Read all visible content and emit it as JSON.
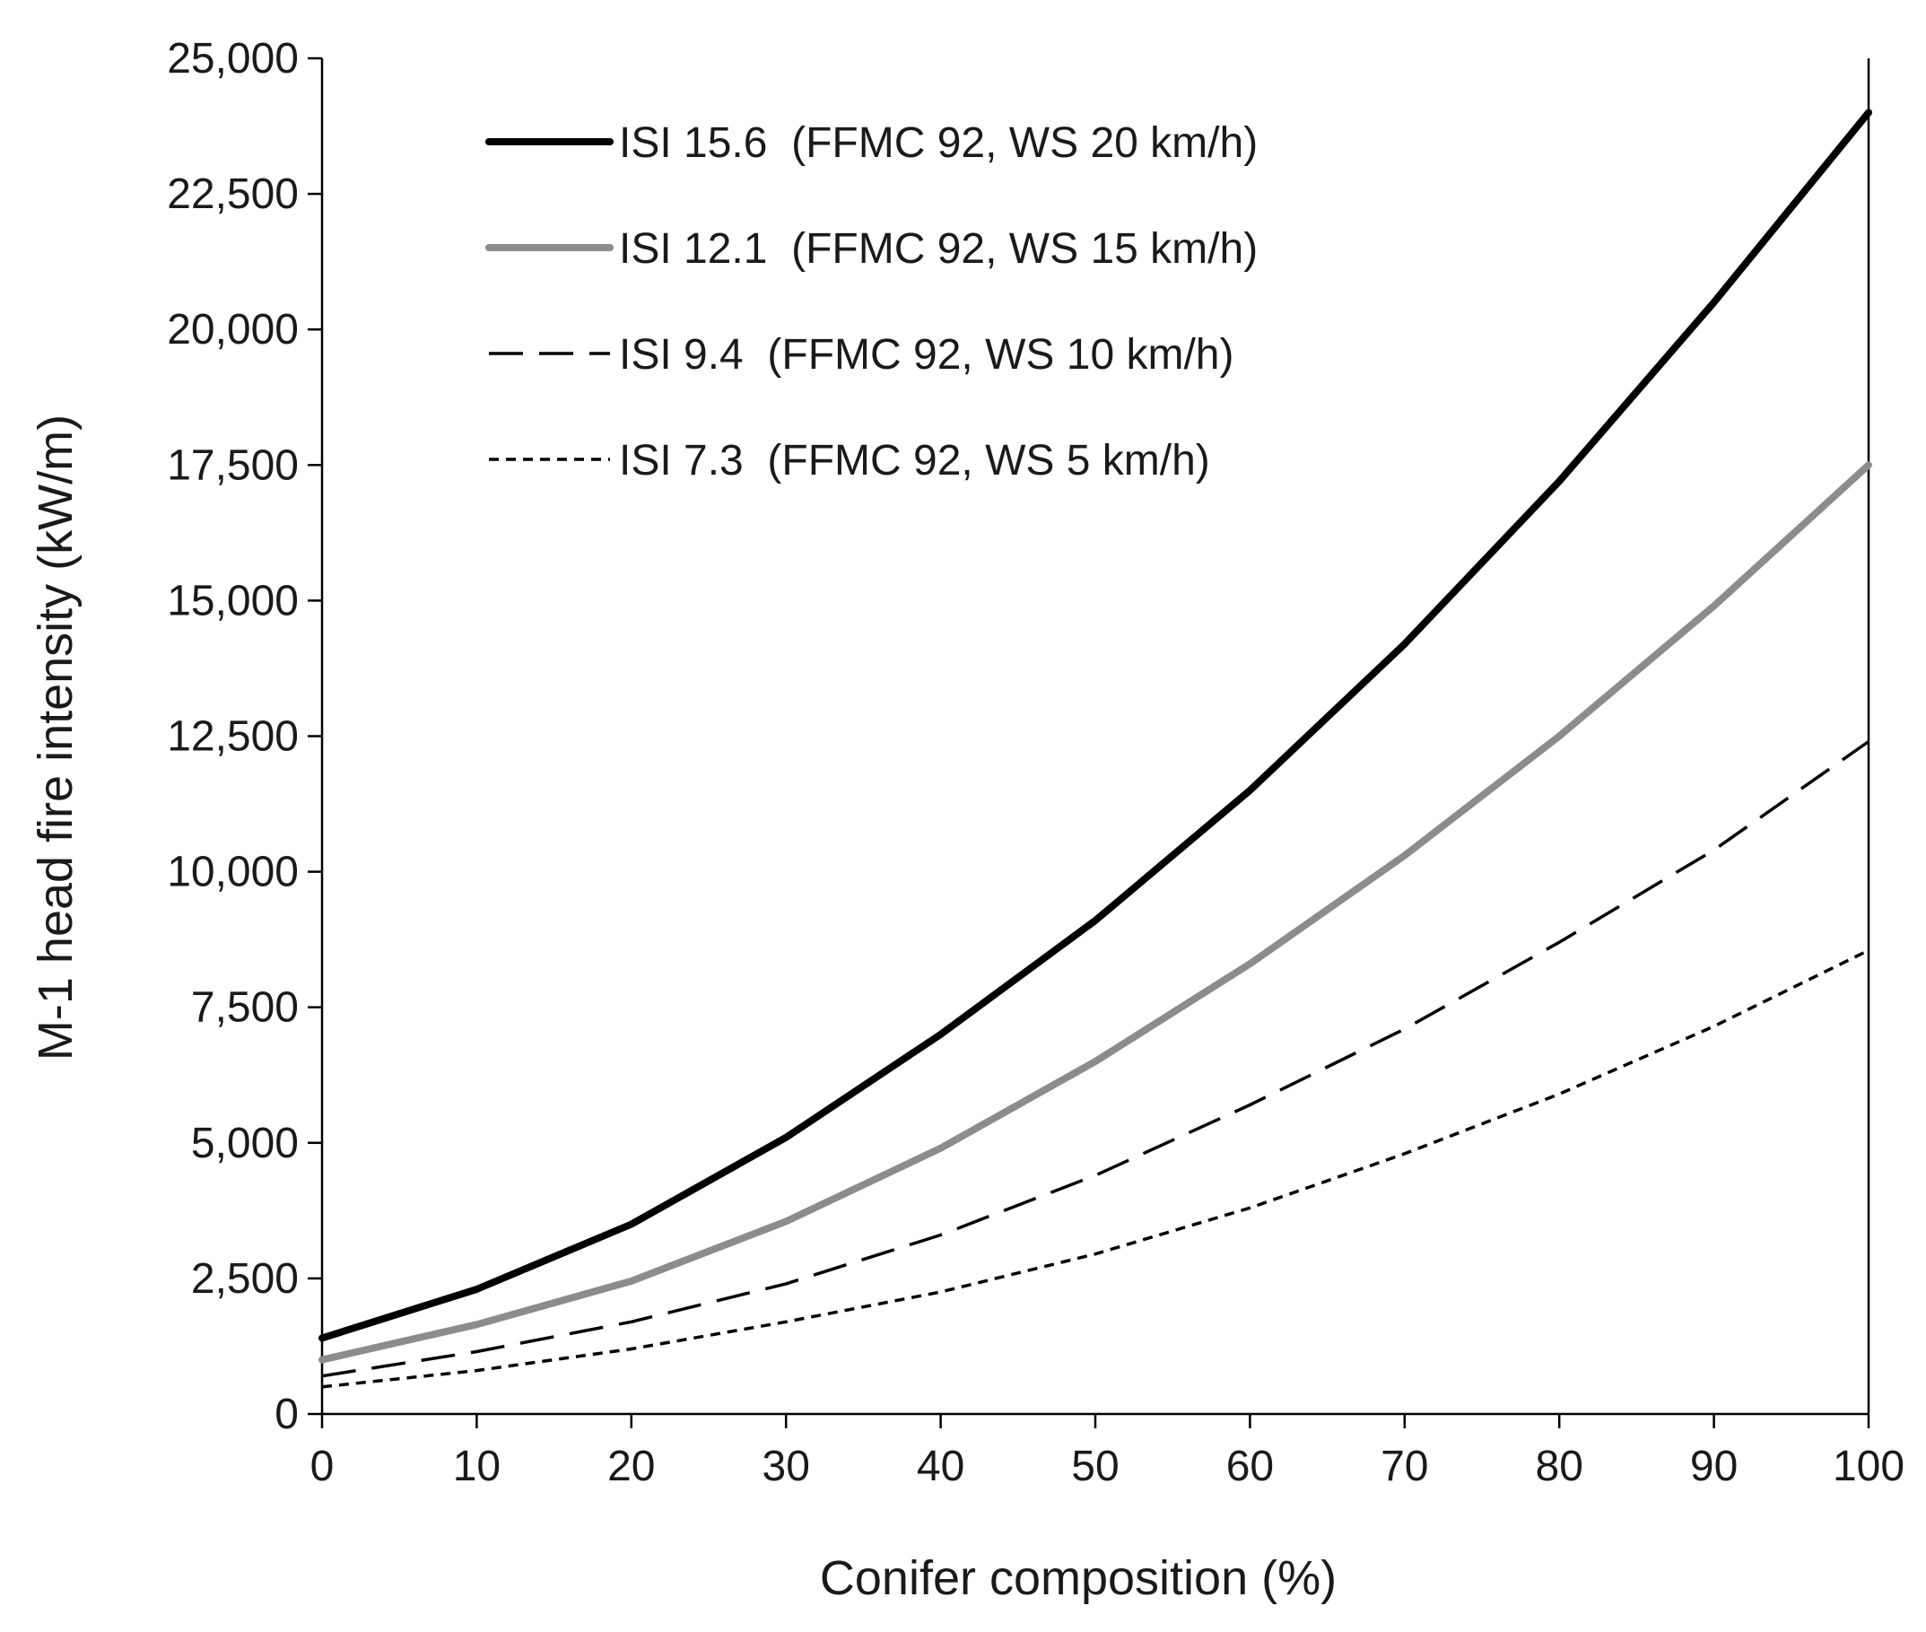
{
  "chart_data": {
    "type": "line",
    "title": "",
    "xlabel": "Conifer composition (%)",
    "ylabel": "M-1 head fire intensity (kW/m)",
    "x": [
      0,
      10,
      20,
      30,
      40,
      50,
      60,
      70,
      80,
      90,
      100
    ],
    "xlim": [
      0,
      100
    ],
    "ylim": [
      0,
      25000
    ],
    "xticks": [
      "0",
      "10",
      "20",
      "30",
      "40",
      "50",
      "60",
      "70",
      "80",
      "90",
      "100"
    ],
    "yticks": [
      "0",
      "2,500",
      "5,000",
      "7,500",
      "10,000",
      "12,500",
      "15,000",
      "17,500",
      "20,000",
      "22,500",
      "25,000"
    ],
    "ytick_values": [
      0,
      2500,
      5000,
      7500,
      10000,
      12500,
      15000,
      17500,
      20000,
      22500,
      25000
    ],
    "grid": false,
    "legend_position": "top-left",
    "series": [
      {
        "name": "ISI 15.6  (FFMC 92, WS 20 km/h)",
        "style": "solid-thick",
        "color": "#000000",
        "values": [
          1400,
          2300,
          3500,
          5100,
          7000,
          9100,
          11500,
          14200,
          17200,
          20500,
          24000
        ]
      },
      {
        "name": "ISI 12.1  (FFMC 92, WS 15 km/h)",
        "style": "solid-thick",
        "color": "#8c8c8c",
        "values": [
          1000,
          1650,
          2450,
          3550,
          4900,
          6500,
          8300,
          10300,
          12500,
          14900,
          17500
        ]
      },
      {
        "name": "ISI 9.4  (FFMC 92, WS 10 km/h)",
        "style": "long-dash",
        "color": "#000000",
        "values": [
          700,
          1150,
          1700,
          2400,
          3300,
          4400,
          5700,
          7100,
          8700,
          10400,
          12400
        ]
      },
      {
        "name": "ISI 7.3  (FFMC 92, WS 5 km/h)",
        "style": "short-dash",
        "color": "#000000",
        "values": [
          500,
          800,
          1200,
          1700,
          2250,
          2950,
          3800,
          4800,
          5900,
          7150,
          8550
        ]
      }
    ]
  }
}
